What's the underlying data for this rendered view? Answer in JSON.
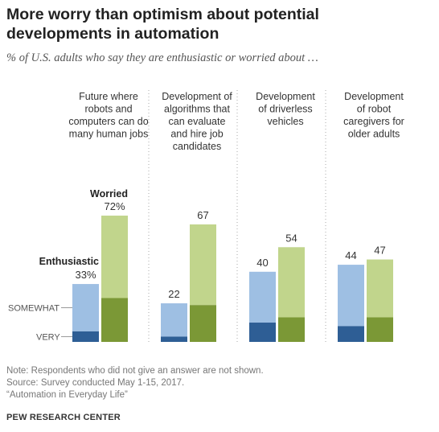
{
  "chart_data": {
    "type": "bar",
    "title": "More worry than optimism about potential developments in automation",
    "subtitle": "% of U.S. adults who say they are enthusiastic or worried about …",
    "panels": [
      {
        "label": [
          "Future where",
          "robots and",
          "computers can do",
          "many human jobs"
        ],
        "enthusiastic": 33,
        "worried": 72,
        "very_enthusiastic": 6,
        "very_worried": 25,
        "enthusiastic_label": "33%",
        "worried_label": "72%"
      },
      {
        "label": [
          "Development of",
          "algorithms that",
          "can evaluate",
          "and hire job",
          "candidates"
        ],
        "enthusiastic": 22,
        "worried": 67,
        "very_enthusiastic": 3,
        "very_worried": 21,
        "enthusiastic_label": "22",
        "worried_label": "67"
      },
      {
        "label": [
          "Development",
          "of driverless",
          "vehicles"
        ],
        "enthusiastic": 40,
        "worried": 54,
        "very_enthusiastic": 11,
        "very_worried": 14,
        "enthusiastic_label": "40",
        "worried_label": "54"
      },
      {
        "label": [
          "Development",
          "of robot",
          "caregivers for",
          "older adults"
        ],
        "enthusiastic": 44,
        "worried": 47,
        "very_enthusiastic": 9,
        "very_worried": 14,
        "enthusiastic_label": "44",
        "worried_label": "47"
      }
    ],
    "series": [
      {
        "name": "Enthusiastic"
      },
      {
        "name": "Worried"
      }
    ],
    "stack_labels": [
      "SOMEWHAT",
      "VERY"
    ],
    "colors": {
      "enthusiastic_somewhat": "#9ebfe3",
      "enthusiastic_very": "#2e5e95",
      "worried_somewhat": "#c1d58c",
      "worried_very": "#7b9836",
      "divider": "#aaaaaa"
    }
  },
  "notes": [
    "Note: Respondents who did not give an answer are not shown.",
    "Source: Survey conducted May 1-15, 2017.",
    "“Automation in Everyday Life”"
  ],
  "brand": "PEW RESEARCH CENTER"
}
